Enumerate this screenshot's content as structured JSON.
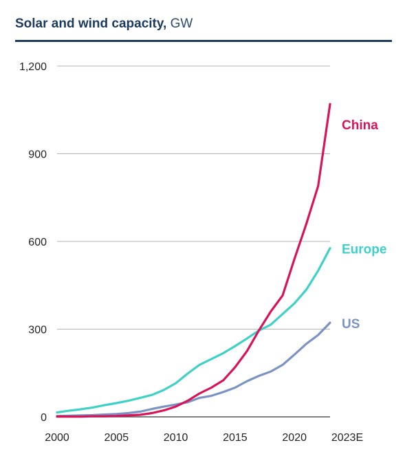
{
  "chart_data": {
    "type": "line",
    "title_bold": "Solar and wind capacity,",
    "title_unit": " GW",
    "xlabel": "",
    "ylabel": "",
    "xlim": [
      2000,
      2023
    ],
    "ylim": [
      0,
      1200
    ],
    "y_ticks": [
      0,
      300,
      600,
      900,
      1200
    ],
    "y_tick_labels": [
      "0",
      "300",
      "600",
      "900",
      "1,200"
    ],
    "x_ticks": [
      2000,
      2005,
      2010,
      2015,
      2020,
      2023
    ],
    "x_tick_labels": [
      "2000",
      "2005",
      "2010",
      "2015",
      "2020",
      "2023E"
    ],
    "grid": true,
    "legend": "inline labels at line ends",
    "x": [
      2000,
      2001,
      2002,
      2003,
      2004,
      2005,
      2006,
      2007,
      2008,
      2009,
      2010,
      2011,
      2012,
      2013,
      2014,
      2015,
      2016,
      2017,
      2018,
      2019,
      2020,
      2021,
      2022,
      2023
    ],
    "series": [
      {
        "name": "China",
        "color": "#d6145a",
        "values": [
          1,
          1,
          1,
          2,
          2,
          3,
          5,
          7,
          13,
          22,
          35,
          55,
          80,
          100,
          125,
          170,
          225,
          295,
          360,
          415,
          540,
          660,
          790,
          1070
        ]
      },
      {
        "name": "Europe",
        "color": "#3fd0c6",
        "values": [
          15,
          21,
          26,
          32,
          40,
          47,
          55,
          65,
          75,
          92,
          115,
          148,
          178,
          198,
          218,
          242,
          268,
          295,
          315,
          352,
          388,
          435,
          500,
          577
        ]
      },
      {
        "name": "US",
        "color": "#7b93c3",
        "values": [
          3,
          4,
          5,
          6,
          8,
          10,
          13,
          18,
          27,
          35,
          42,
          50,
          65,
          72,
          85,
          100,
          122,
          140,
          155,
          178,
          213,
          250,
          280,
          322
        ]
      }
    ]
  }
}
